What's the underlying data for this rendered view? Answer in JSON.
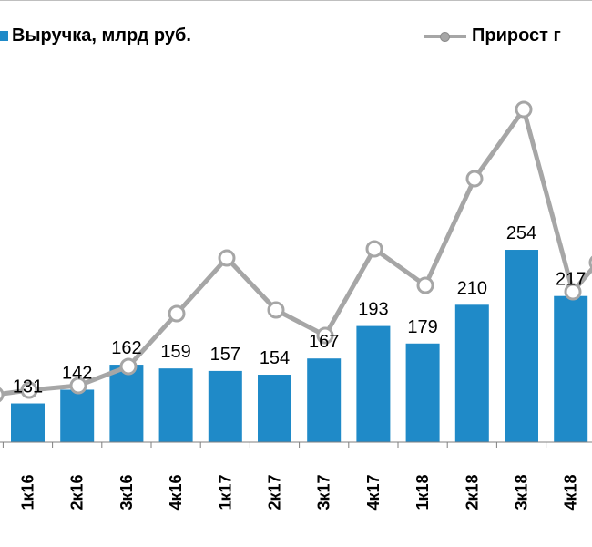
{
  "chart_data": {
    "type": "bar",
    "categories": [
      "1к16",
      "2к16",
      "3к16",
      "4к16",
      "1к17",
      "2к17",
      "3к17",
      "4к17",
      "1к18",
      "2к18",
      "3к18",
      "4к18"
    ],
    "series": [
      {
        "name": "Выручка, млрд руб.",
        "type": "bar",
        "values": [
          131,
          142,
          162,
          159,
          157,
          154,
          167,
          193,
          179,
          210,
          254,
          217
        ],
        "color": "#1f8ac8"
      },
      {
        "name": "Прирост г",
        "type": "line",
        "color": "#a6a6a6"
      }
    ],
    "legend_position": "top",
    "grid": false
  },
  "legend": {
    "bar_label": "Выручка, млрд руб.",
    "line_label": "Прирост г"
  }
}
